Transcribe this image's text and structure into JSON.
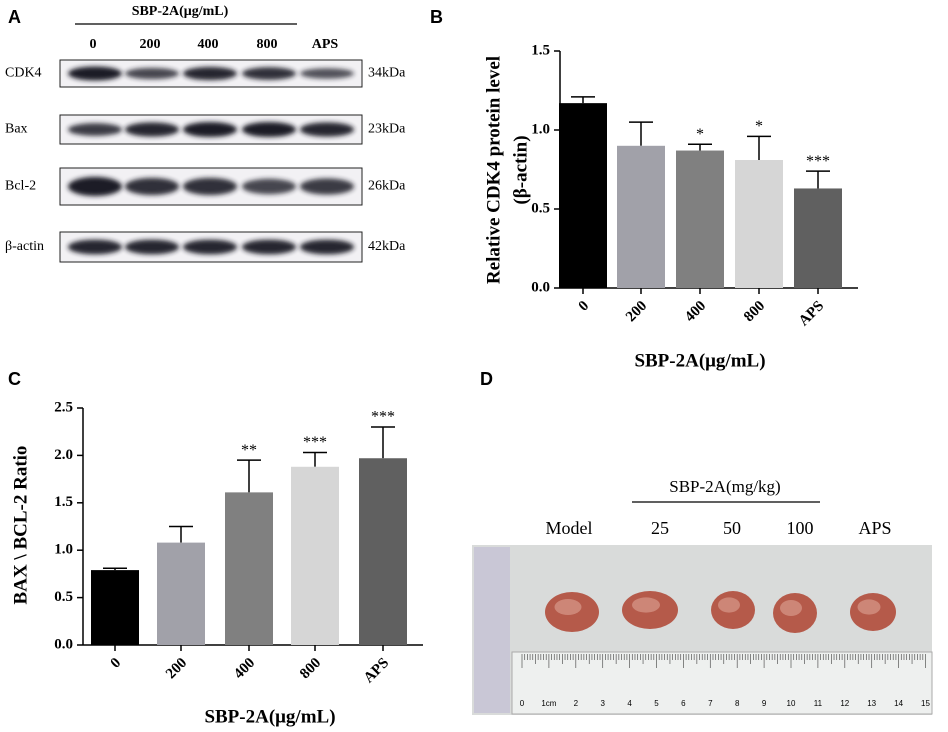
{
  "panel_labels": [
    "A",
    "B",
    "C",
    "D"
  ],
  "blot": {
    "header": "SBP-2A(μg/mL)",
    "lanes": [
      "0",
      "200",
      "400",
      "800",
      "APS"
    ],
    "rows": [
      {
        "name": "CDK4",
        "size": "34kDa"
      },
      {
        "name": "Bax",
        "size": "23kDa"
      },
      {
        "name": "Bcl-2",
        "size": "26kDa"
      },
      {
        "name": "β-actin",
        "size": "42kDa"
      }
    ]
  },
  "chart_data": [
    {
      "type": "bar",
      "ylabel": [
        "Relative CDK4 protein level",
        "(β-actin)"
      ],
      "xlabel": "SBP-2A(μg/mL)",
      "categories": [
        "0",
        "200",
        "400",
        "800",
        "APS"
      ],
      "values": [
        1.17,
        0.9,
        0.87,
        0.81,
        0.63
      ],
      "errors": [
        0.04,
        0.15,
        0.04,
        0.15,
        0.11
      ],
      "annotations": [
        null,
        null,
        "*",
        "*",
        "***"
      ],
      "colors": [
        "#000000",
        "#a1a1a9",
        "#808080",
        "#d6d6d6",
        "#606060"
      ],
      "ylim": [
        0,
        1.5
      ],
      "yticks": [
        {
          "value": 0,
          "label": "0.0"
        },
        {
          "value": 0.5,
          "label": "0.5"
        },
        {
          "value": 1,
          "label": "1.0"
        },
        {
          "value": 1.5,
          "label": "1.5"
        }
      ]
    },
    {
      "type": "bar",
      "ylabel": [
        "BAX \\ BCL-2 Ratio"
      ],
      "xlabel": "SBP-2A(μg/mL)",
      "categories": [
        "0",
        "200",
        "400",
        "800",
        "APS"
      ],
      "values": [
        0.79,
        1.08,
        1.61,
        1.88,
        1.97
      ],
      "errors": [
        0.02,
        0.17,
        0.34,
        0.15,
        0.33
      ],
      "annotations": [
        null,
        null,
        "**",
        "***",
        "***"
      ],
      "colors": [
        "#000000",
        "#a1a1a9",
        "#808080",
        "#d6d6d6",
        "#606060"
      ],
      "ylim": [
        0,
        2.5
      ],
      "yticks": [
        {
          "value": 0,
          "label": "0.0"
        },
        {
          "value": 0.5,
          "label": "0.5"
        },
        {
          "value": 1,
          "label": "1.0"
        },
        {
          "value": 1.5,
          "label": "1.5"
        },
        {
          "value": 2,
          "label": "2.0"
        },
        {
          "value": 2.5,
          "label": "2.5"
        }
      ]
    }
  ],
  "photo": {
    "header": "SBP-2A(mg/kg)",
    "groups": [
      "Model",
      "25",
      "50",
      "100",
      "APS"
    ],
    "ruler": [
      "0",
      "1cm",
      "2",
      "3",
      "4",
      "5",
      "6",
      "7",
      "8",
      "9",
      "10",
      "11",
      "12",
      "13",
      "14",
      "15"
    ]
  }
}
